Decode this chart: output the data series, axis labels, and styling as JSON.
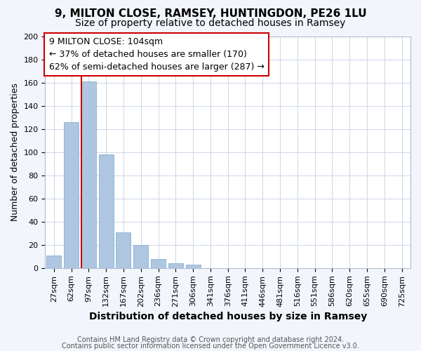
{
  "title": "9, MILTON CLOSE, RAMSEY, HUNTINGDON, PE26 1LU",
  "subtitle": "Size of property relative to detached houses in Ramsey",
  "xlabel": "Distribution of detached houses by size in Ramsey",
  "ylabel": "Number of detached properties",
  "bar_labels": [
    "27sqm",
    "62sqm",
    "97sqm",
    "132sqm",
    "167sqm",
    "202sqm",
    "236sqm",
    "271sqm",
    "306sqm",
    "341sqm",
    "376sqm",
    "411sqm",
    "446sqm",
    "481sqm",
    "516sqm",
    "551sqm",
    "586sqm",
    "620sqm",
    "655sqm",
    "690sqm",
    "725sqm"
  ],
  "bar_values": [
    11,
    126,
    161,
    98,
    31,
    20,
    8,
    4,
    3,
    0,
    0,
    0,
    0,
    0,
    0,
    0,
    0,
    0,
    0,
    0,
    0
  ],
  "bar_color": "#aec6e0",
  "bar_edge_color": "#8ab0d0",
  "vline_color": "#cc0000",
  "vline_pos": 1.6,
  "ylim": [
    0,
    200
  ],
  "yticks": [
    0,
    20,
    40,
    60,
    80,
    100,
    120,
    140,
    160,
    180,
    200
  ],
  "annotation_box_title": "9 MILTON CLOSE: 104sqm",
  "annotation_line1": "← 37% of detached houses are smaller (170)",
  "annotation_line2": "62% of semi-detached houses are larger (287) →",
  "footer_line1": "Contains HM Land Registry data © Crown copyright and database right 2024.",
  "footer_line2": "Contains public sector information licensed under the Open Government Licence v3.0.",
  "background_color": "#f2f5fb",
  "plot_background": "#ffffff",
  "grid_color": "#ccd5e8",
  "title_fontsize": 11,
  "subtitle_fontsize": 10,
  "xlabel_fontsize": 10,
  "ylabel_fontsize": 9,
  "tick_fontsize": 8,
  "footer_fontsize": 7,
  "annotation_fontsize": 9
}
